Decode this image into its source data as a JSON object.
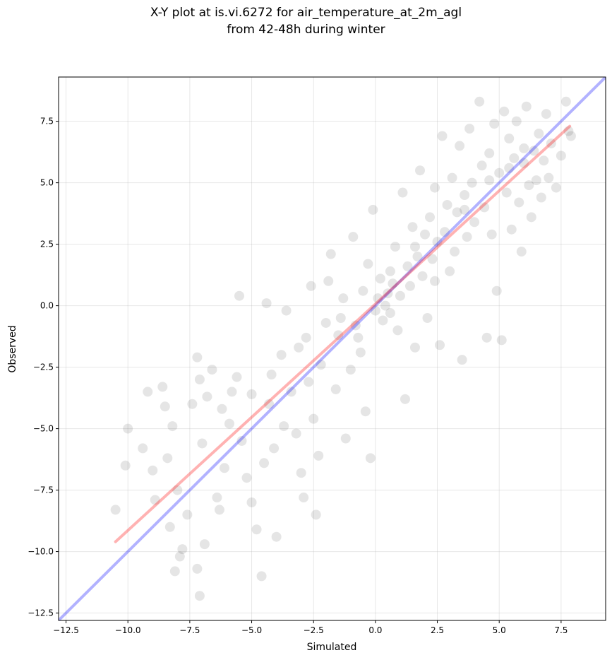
{
  "title": {
    "line1": "X-Y plot at is.vi.6272 for air_temperature_at_2m_agl",
    "line2": "from 42-48h during winter"
  },
  "chart_data": {
    "type": "scatter",
    "xlabel": "Simulated",
    "ylabel": "Observed",
    "xlim": [
      -12.8,
      9.3
    ],
    "ylim": [
      -12.8,
      9.3
    ],
    "xticks": [
      -12.5,
      -10.0,
      -7.5,
      -5.0,
      -2.5,
      0.0,
      2.5,
      5.0,
      7.5
    ],
    "yticks": [
      -12.5,
      -10.0,
      -7.5,
      -5.0,
      -2.5,
      0.0,
      2.5,
      5.0,
      7.5
    ],
    "tick_labels": [
      "−12.5",
      "−10.0",
      "−7.5",
      "−5.0",
      "−2.5",
      "0.0",
      "2.5",
      "5.0",
      "7.5"
    ],
    "grid": true,
    "point_color": "#000000",
    "point_alpha": 0.1,
    "points": [
      [
        -10.5,
        -8.3
      ],
      [
        -10.0,
        -5.0
      ],
      [
        -10.1,
        -6.5
      ],
      [
        -9.2,
        -3.5
      ],
      [
        -9.4,
        -5.8
      ],
      [
        -9.0,
        -6.7
      ],
      [
        -8.9,
        -7.9
      ],
      [
        -8.5,
        -4.1
      ],
      [
        -8.6,
        -3.3
      ],
      [
        -8.2,
        -4.9
      ],
      [
        -8.4,
        -6.2
      ],
      [
        -8.0,
        -7.5
      ],
      [
        -8.3,
        -9.0
      ],
      [
        -8.1,
        -10.8
      ],
      [
        -7.9,
        -10.2
      ],
      [
        -7.8,
        -9.9
      ],
      [
        -7.6,
        -8.5
      ],
      [
        -7.4,
        -4.0
      ],
      [
        -7.2,
        -2.1
      ],
      [
        -7.1,
        -3.0
      ],
      [
        -7.2,
        -10.7
      ],
      [
        -7.1,
        -11.8
      ],
      [
        -6.9,
        -9.7
      ],
      [
        -6.8,
        -3.7
      ],
      [
        -6.6,
        -2.6
      ],
      [
        -6.4,
        -7.8
      ],
      [
        -6.3,
        -8.3
      ],
      [
        -6.1,
        -6.6
      ],
      [
        -5.9,
        -4.8
      ],
      [
        -5.8,
        -3.5
      ],
      [
        -5.6,
        -2.9
      ],
      [
        -5.5,
        0.4
      ],
      [
        -5.4,
        -5.5
      ],
      [
        -5.2,
        -7.0
      ],
      [
        -5.0,
        -8.0
      ],
      [
        -4.8,
        -9.1
      ],
      [
        -4.6,
        -11.0
      ],
      [
        -4.5,
        -6.4
      ],
      [
        -4.4,
        0.1
      ],
      [
        -4.3,
        -4.0
      ],
      [
        -4.1,
        -5.8
      ],
      [
        -4.0,
        -9.4
      ],
      [
        -3.8,
        -2.0
      ],
      [
        -3.6,
        -0.2
      ],
      [
        -3.4,
        -3.5
      ],
      [
        -3.2,
        -5.2
      ],
      [
        -3.0,
        -6.8
      ],
      [
        -2.9,
        -7.8
      ],
      [
        -2.8,
        -1.3
      ],
      [
        -2.6,
        0.8
      ],
      [
        -2.5,
        -4.6
      ],
      [
        -2.4,
        -8.5
      ],
      [
        -2.3,
        -6.1
      ],
      [
        -2.2,
        -2.4
      ],
      [
        -2.0,
        -0.7
      ],
      [
        -1.9,
        1.0
      ],
      [
        -1.8,
        2.1
      ],
      [
        -1.6,
        -3.4
      ],
      [
        -1.5,
        -1.2
      ],
      [
        -1.3,
        0.3
      ],
      [
        -1.2,
        -5.4
      ],
      [
        -1.0,
        -2.6
      ],
      [
        -0.9,
        2.8
      ],
      [
        -0.8,
        -0.8
      ],
      [
        -0.6,
        -1.9
      ],
      [
        -0.5,
        0.6
      ],
      [
        -0.4,
        -4.3
      ],
      [
        -0.3,
        1.7
      ],
      [
        -0.2,
        -6.2
      ],
      [
        -0.1,
        3.9
      ],
      [
        0.0,
        -0.2
      ],
      [
        0.1,
        0.3
      ],
      [
        0.2,
        1.1
      ],
      [
        0.3,
        -0.6
      ],
      [
        0.4,
        0.0
      ],
      [
        0.5,
        0.5
      ],
      [
        0.6,
        -0.3
      ],
      [
        0.7,
        0.9
      ],
      [
        0.8,
        2.4
      ],
      [
        0.9,
        -1.0
      ],
      [
        1.0,
        0.4
      ],
      [
        1.1,
        4.6
      ],
      [
        1.2,
        -3.8
      ],
      [
        1.3,
        1.6
      ],
      [
        1.4,
        0.8
      ],
      [
        1.5,
        3.2
      ],
      [
        1.6,
        -1.7
      ],
      [
        1.7,
        2.0
      ],
      [
        1.8,
        5.5
      ],
      [
        1.9,
        1.2
      ],
      [
        2.0,
        2.9
      ],
      [
        2.1,
        -0.5
      ],
      [
        2.2,
        3.6
      ],
      [
        2.3,
        1.9
      ],
      [
        2.4,
        4.8
      ],
      [
        2.5,
        2.6
      ],
      [
        2.6,
        -1.6
      ],
      [
        2.7,
        6.9
      ],
      [
        2.8,
        3.0
      ],
      [
        2.9,
        4.1
      ],
      [
        3.0,
        1.4
      ],
      [
        3.1,
        5.2
      ],
      [
        3.2,
        2.2
      ],
      [
        3.3,
        3.8
      ],
      [
        3.4,
        6.5
      ],
      [
        3.5,
        -2.2
      ],
      [
        3.6,
        4.5
      ],
      [
        3.7,
        2.8
      ],
      [
        3.8,
        7.2
      ],
      [
        3.9,
        5.0
      ],
      [
        4.0,
        3.4
      ],
      [
        4.2,
        8.3
      ],
      [
        4.3,
        5.7
      ],
      [
        4.4,
        4.0
      ],
      [
        4.5,
        -1.3
      ],
      [
        4.6,
        6.2
      ],
      [
        4.7,
        2.9
      ],
      [
        4.8,
        7.4
      ],
      [
        4.9,
        0.6
      ],
      [
        5.0,
        5.4
      ],
      [
        5.1,
        -1.4
      ],
      [
        5.2,
        7.9
      ],
      [
        5.3,
        4.6
      ],
      [
        5.4,
        6.8
      ],
      [
        5.5,
        3.1
      ],
      [
        5.6,
        6.0
      ],
      [
        5.7,
        7.5
      ],
      [
        5.8,
        4.2
      ],
      [
        5.9,
        2.2
      ],
      [
        6.0,
        5.8
      ],
      [
        6.1,
        8.1
      ],
      [
        6.2,
        4.9
      ],
      [
        6.3,
        3.6
      ],
      [
        6.4,
        6.3
      ],
      [
        6.5,
        5.1
      ],
      [
        6.6,
        7.0
      ],
      [
        6.7,
        4.4
      ],
      [
        6.8,
        5.9
      ],
      [
        6.9,
        7.8
      ],
      [
        7.0,
        5.2
      ],
      [
        7.1,
        6.6
      ],
      [
        7.3,
        4.8
      ],
      [
        7.5,
        6.1
      ],
      [
        7.7,
        8.3
      ],
      [
        7.8,
        7.1
      ],
      [
        7.9,
        6.9
      ],
      [
        -7.0,
        -5.6
      ],
      [
        -6.2,
        -4.2
      ],
      [
        -5.0,
        -3.6
      ],
      [
        -4.2,
        -2.8
      ],
      [
        -3.7,
        -4.9
      ],
      [
        -3.1,
        -1.7
      ],
      [
        -2.7,
        -3.1
      ],
      [
        -1.4,
        -0.5
      ],
      [
        -0.7,
        -1.3
      ],
      [
        0.6,
        1.4
      ],
      [
        1.6,
        2.4
      ],
      [
        2.4,
        1.0
      ],
      [
        3.6,
        3.9
      ],
      [
        4.6,
        5.1
      ],
      [
        5.4,
        5.6
      ],
      [
        6.0,
        6.4
      ]
    ],
    "lines": [
      {
        "name": "",
        "color": "#0000ff",
        "alpha": 0.3,
        "x": [
          -12.8,
          9.3
        ],
        "y": [
          -12.8,
          9.3
        ]
      },
      {
        "name": "",
        "color": "#ff0000",
        "alpha": 0.3,
        "x": [
          -10.5,
          7.85
        ],
        "y": [
          -9.6,
          7.3
        ]
      }
    ]
  }
}
